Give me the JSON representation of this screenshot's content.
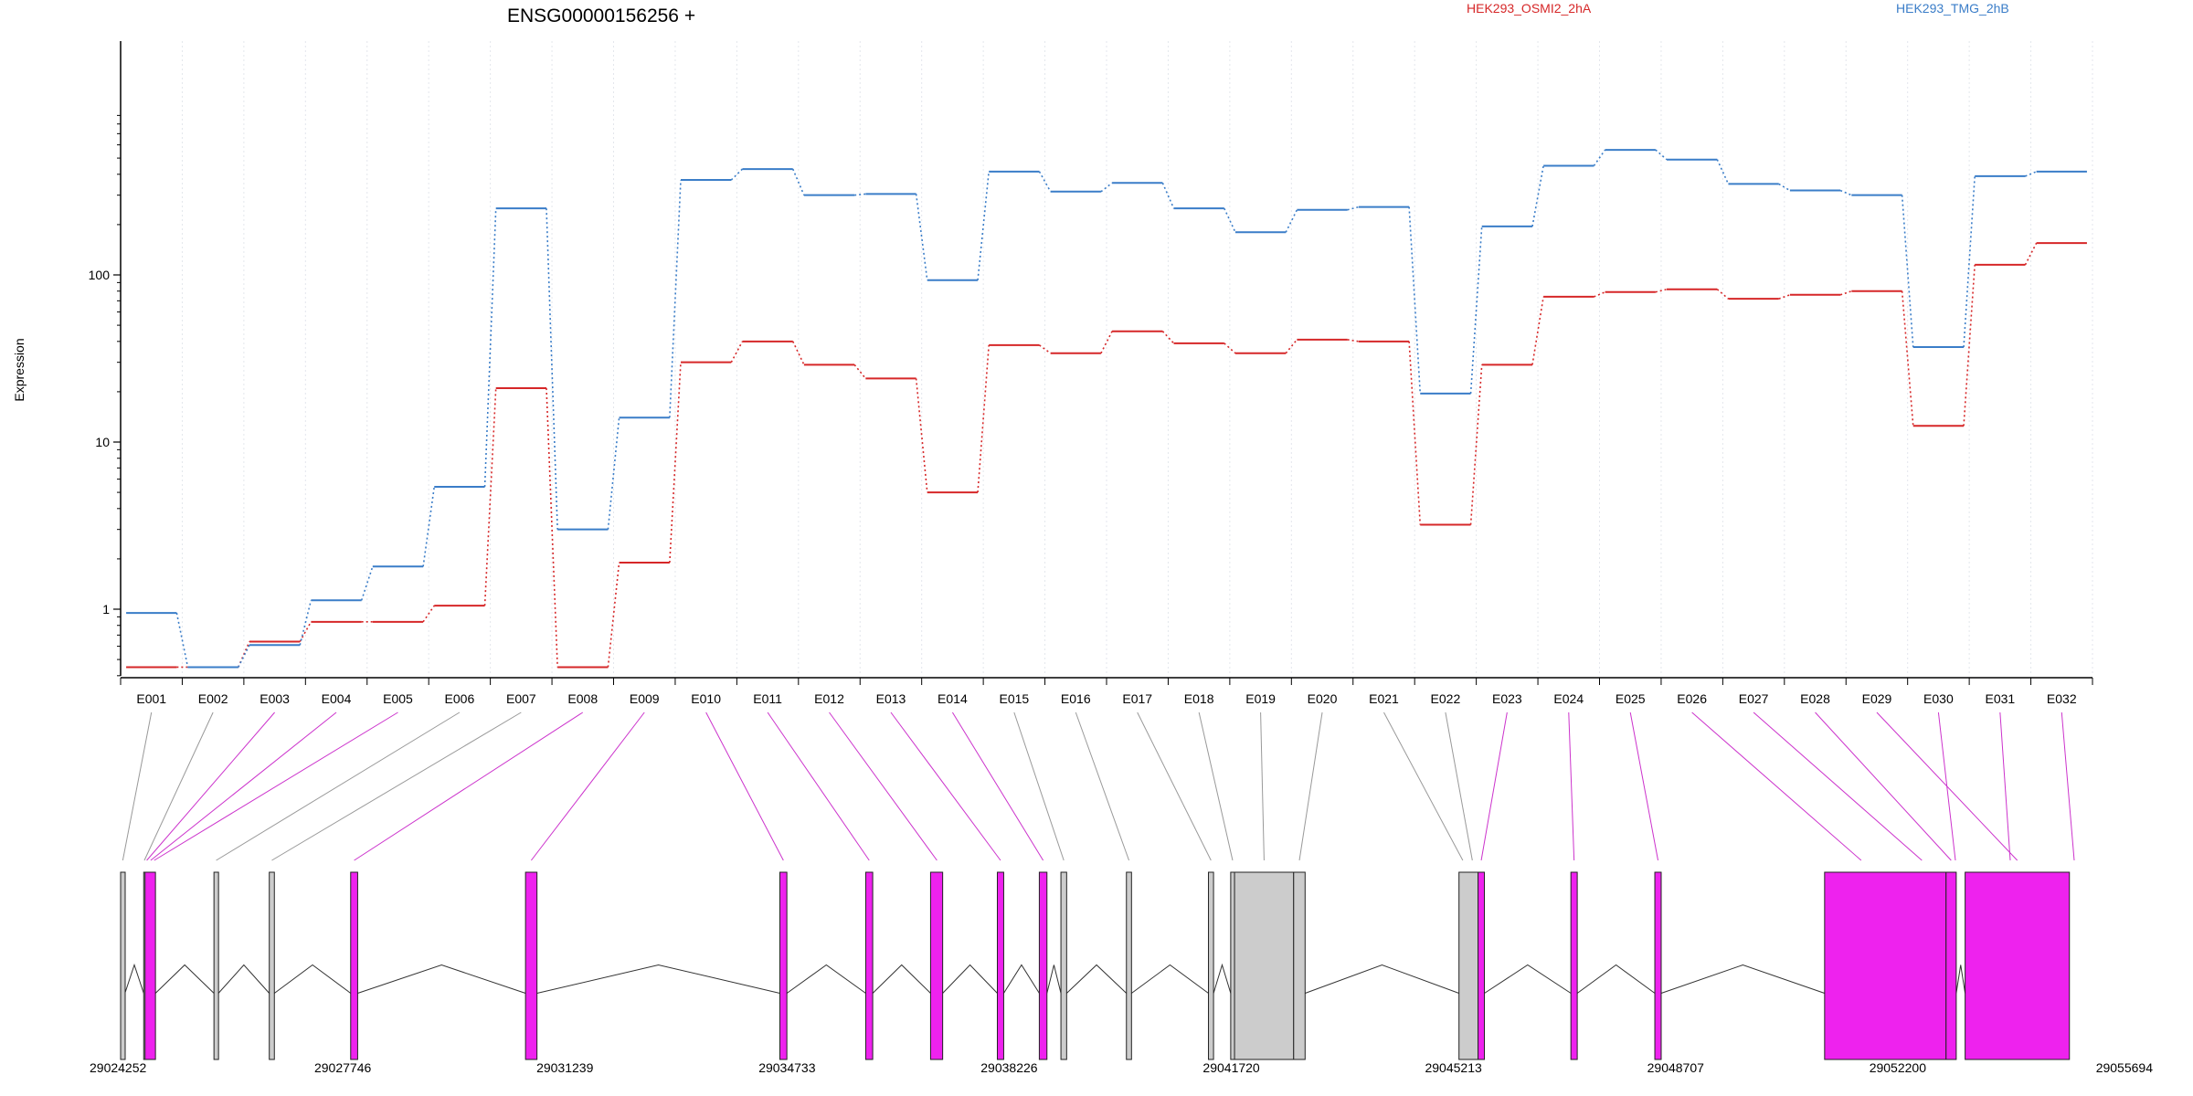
{
  "chart_data": {
    "type": "line",
    "title": "ENSG00000156256 +",
    "ylabel": "Expression",
    "yscale": "log",
    "ylim": [
      0.4,
      900
    ],
    "ytick_labels": [
      "1",
      "10",
      "100"
    ],
    "ytick_values": [
      1,
      10,
      100
    ],
    "colors": {
      "sampleA": "#d62728",
      "sampleB": "#3a7dc8",
      "exon_highlight": "#ee22ee",
      "exon_gray": "#cccccc"
    },
    "categories": [
      "E001",
      "E002",
      "E003",
      "E004",
      "E005",
      "E006",
      "E007",
      "E008",
      "E009",
      "E010",
      "E011",
      "E012",
      "E013",
      "E014",
      "E015",
      "E016",
      "E017",
      "E018",
      "E019",
      "E020",
      "E021",
      "E022",
      "E023",
      "E024",
      "E025",
      "E026",
      "E027",
      "E028",
      "E029",
      "E030",
      "E031",
      "E032"
    ],
    "series": [
      {
        "name": "HEK293_OSMI2_2hA",
        "color": "#d62728",
        "values": [
          0.45,
          0.45,
          0.64,
          0.84,
          0.84,
          1.05,
          21,
          0.45,
          1.9,
          30,
          40,
          29,
          24,
          5,
          38,
          34,
          46,
          39,
          34,
          41,
          40,
          3.2,
          29,
          74,
          79,
          82,
          72,
          76,
          80,
          12.5,
          115,
          155
        ]
      },
      {
        "name": "HEK293_TMG_2hB",
        "color": "#3a7dc8",
        "values": [
          0.95,
          0.45,
          0.61,
          1.13,
          1.8,
          5.4,
          250,
          3.0,
          14,
          370,
          430,
          300,
          305,
          93,
          415,
          315,
          355,
          250,
          180,
          245,
          255,
          19.5,
          195,
          450,
          560,
          490,
          350,
          320,
          300,
          37,
          390,
          415
        ]
      }
    ],
    "genomic_axis": {
      "tick_labels": [
        "29024252",
        "29027746",
        "29031239",
        "29034733",
        "29038226",
        "29041720",
        "29045213",
        "29048707",
        "29052200",
        "29055694"
      ],
      "tick_values": [
        29024252,
        29027746,
        29031239,
        29034733,
        29038226,
        29041720,
        29045213,
        29048707,
        29052200,
        29055694
      ]
    },
    "exons": [
      {
        "id": "E001",
        "start": 29024252,
        "end": 29024320,
        "highlight": false
      },
      {
        "id": "E002",
        "start": 29024615,
        "end": 29024636,
        "highlight": false
      },
      {
        "id": "E003",
        "start": 29024636,
        "end": 29024690,
        "highlight": true
      },
      {
        "id": "E004",
        "start": 29024690,
        "end": 29024760,
        "highlight": true
      },
      {
        "id": "E005",
        "start": 29024760,
        "end": 29024800,
        "highlight": true
      },
      {
        "id": "E006",
        "start": 29025720,
        "end": 29025790,
        "highlight": false
      },
      {
        "id": "E007",
        "start": 29026590,
        "end": 29026670,
        "highlight": false
      },
      {
        "id": "E008",
        "start": 29027870,
        "end": 29027980,
        "highlight": true
      },
      {
        "id": "E009",
        "start": 29030620,
        "end": 29030800,
        "highlight": true
      },
      {
        "id": "E010",
        "start": 29034620,
        "end": 29034730,
        "highlight": true
      },
      {
        "id": "E011",
        "start": 29035970,
        "end": 29036080,
        "highlight": true
      },
      {
        "id": "E012",
        "start": 29037000,
        "end": 29037180,
        "highlight": true
      },
      {
        "id": "E013",
        "start": 29038040,
        "end": 29038140,
        "highlight": true
      },
      {
        "id": "E014",
        "start": 29038700,
        "end": 29038820,
        "highlight": true
      },
      {
        "id": "E015",
        "start": 29039040,
        "end": 29039130,
        "highlight": false
      },
      {
        "id": "E016",
        "start": 29040070,
        "end": 29040150,
        "highlight": false
      },
      {
        "id": "E017",
        "start": 29041360,
        "end": 29041440,
        "highlight": false
      },
      {
        "id": "E018",
        "start": 29041710,
        "end": 29041770,
        "highlight": false
      },
      {
        "id": "E019",
        "start": 29041770,
        "end": 29042700,
        "highlight": false
      },
      {
        "id": "E020",
        "start": 29042700,
        "end": 29042880,
        "highlight": false
      },
      {
        "id": "E021",
        "start": 29045300,
        "end": 29045420,
        "highlight": false
      },
      {
        "id": "E022",
        "start": 29045420,
        "end": 29045600,
        "highlight": false
      },
      {
        "id": "E023",
        "start": 29045600,
        "end": 29045700,
        "highlight": true
      },
      {
        "id": "E024",
        "start": 29047060,
        "end": 29047160,
        "highlight": true
      },
      {
        "id": "E025",
        "start": 29048380,
        "end": 29048480,
        "highlight": true
      },
      {
        "id": "E026",
        "start": 29051050,
        "end": 29052200,
        "highlight": true
      },
      {
        "id": "E027",
        "start": 29052200,
        "end": 29052960,
        "highlight": true
      },
      {
        "id": "E028",
        "start": 29052960,
        "end": 29053120,
        "highlight": true
      },
      {
        "id": "E029",
        "start": 29053260,
        "end": 29054900,
        "highlight": true
      }
    ],
    "transcript_exons": [
      {
        "start": 29024252,
        "end": 29024320,
        "fill": "gray"
      },
      {
        "start": 29024615,
        "end": 29024636,
        "fill": "gray"
      },
      {
        "start": 29024636,
        "end": 29024800,
        "fill": "magenta"
      },
      {
        "start": 29025720,
        "end": 29025790,
        "fill": "gray"
      },
      {
        "start": 29026590,
        "end": 29026670,
        "fill": "gray"
      },
      {
        "start": 29027870,
        "end": 29027980,
        "fill": "magenta"
      },
      {
        "start": 29030620,
        "end": 29030800,
        "fill": "magenta"
      },
      {
        "start": 29034620,
        "end": 29034730,
        "fill": "magenta"
      },
      {
        "start": 29035970,
        "end": 29036080,
        "fill": "magenta"
      },
      {
        "start": 29036990,
        "end": 29037180,
        "fill": "magenta"
      },
      {
        "start": 29038040,
        "end": 29038140,
        "fill": "magenta"
      },
      {
        "start": 29038700,
        "end": 29038820,
        "fill": "magenta"
      },
      {
        "start": 29039040,
        "end": 29039130,
        "fill": "gray"
      },
      {
        "start": 29040070,
        "end": 29040150,
        "fill": "gray"
      },
      {
        "start": 29041360,
        "end": 29041440,
        "fill": "gray"
      },
      {
        "start": 29041710,
        "end": 29041770,
        "fill": "gray"
      },
      {
        "start": 29041770,
        "end": 29042700,
        "fill": "gray"
      },
      {
        "start": 29042700,
        "end": 29042880,
        "fill": "gray"
      },
      {
        "start": 29045300,
        "end": 29045600,
        "fill": "gray"
      },
      {
        "start": 29045600,
        "end": 29045700,
        "fill": "magenta"
      },
      {
        "start": 29047060,
        "end": 29047160,
        "fill": "magenta"
      },
      {
        "start": 29048380,
        "end": 29048480,
        "fill": "magenta"
      },
      {
        "start": 29051050,
        "end": 29052960,
        "fill": "magenta"
      },
      {
        "start": 29052960,
        "end": 29053120,
        "fill": "magenta"
      },
      {
        "start": 29053260,
        "end": 29054900,
        "fill": "magenta"
      }
    ]
  }
}
